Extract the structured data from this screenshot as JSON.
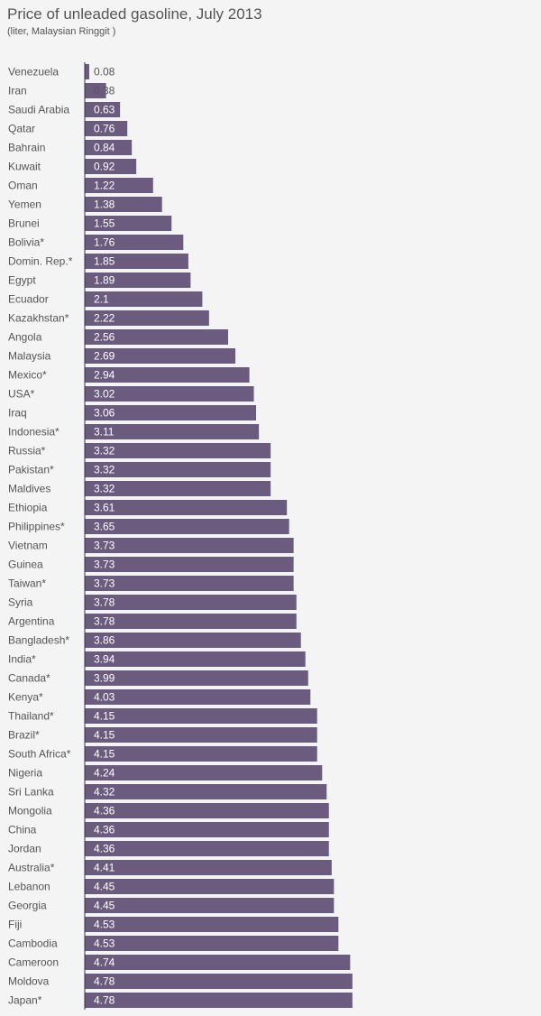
{
  "chart_data": {
    "type": "bar",
    "orientation": "horizontal",
    "title": "Price of unleaded gasoline, July 2013",
    "subtitle": "(liter, Malaysian Ringgit )",
    "xlabel": "",
    "ylabel": "",
    "xlim": [
      0,
      5
    ],
    "grid": false,
    "colors": {
      "bar": "#6b5b7f",
      "background": "#f4f4f4",
      "bar_label": "#ffffff",
      "outside_label": "#555555",
      "axis": "#333333"
    },
    "categories": [
      "Venezuela",
      "Iran",
      "Saudi Arabia",
      "Qatar",
      "Bahrain",
      "Kuwait",
      "Oman",
      "Yemen",
      "Brunei",
      "Bolivia*",
      "Domin. Rep.*",
      "Egypt",
      "Ecuador",
      "Kazakhstan*",
      "Angola",
      "Malaysia",
      "Mexico*",
      "USA*",
      "Iraq",
      "Indonesia*",
      "Russia*",
      "Pakistan*",
      "Maldives",
      "Ethiopia",
      "Philippines*",
      "Vietnam",
      "Guinea",
      "Taiwan*",
      "Syria",
      "Argentina",
      "Bangladesh*",
      "India*",
      "Canada*",
      "Kenya*",
      "Thailand*",
      "Brazil*",
      "South Africa*",
      "Nigeria",
      "Sri Lanka",
      "Mongolia",
      "China",
      "Jordan",
      "Australia*",
      "Lebanon",
      "Georgia",
      "Fiji",
      "Cambodia",
      "Cameroon",
      "Moldova",
      "Japan*"
    ],
    "values": [
      0.08,
      0.38,
      0.63,
      0.76,
      0.84,
      0.92,
      1.22,
      1.38,
      1.55,
      1.76,
      1.85,
      1.89,
      2.1,
      2.22,
      2.56,
      2.69,
      2.94,
      3.02,
      3.06,
      3.11,
      3.32,
      3.32,
      3.32,
      3.61,
      3.65,
      3.73,
      3.73,
      3.73,
      3.78,
      3.78,
      3.86,
      3.94,
      3.99,
      4.03,
      4.15,
      4.15,
      4.15,
      4.24,
      4.32,
      4.36,
      4.36,
      4.36,
      4.41,
      4.45,
      4.45,
      4.53,
      4.53,
      4.74,
      4.78,
      4.78
    ]
  }
}
